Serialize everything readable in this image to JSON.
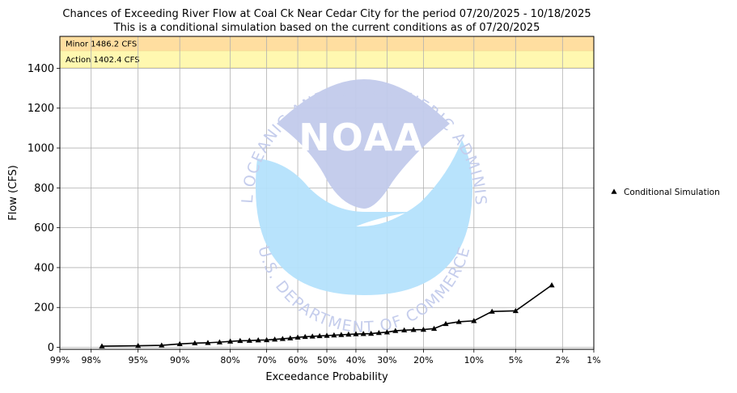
{
  "chart_data": {
    "type": "line",
    "title": "Chances of Exceeding River Flow at Coal Ck Near Cedar City for the period 07/20/2025 - 10/18/2025",
    "subtitle": "This is a conditional simulation based on the current conditions as of 07/20/2025",
    "xlabel": "Exceedance Probability",
    "ylabel": "Flow (CFS)",
    "x_scale": "normal-probability (reversed)",
    "x_range_percent": [
      99,
      1
    ],
    "ylim": [
      -10,
      1560
    ],
    "x_ticks": [
      {
        "p": 99,
        "label": "99%"
      },
      {
        "p": 98,
        "label": "98%"
      },
      {
        "p": 95,
        "label": "95%"
      },
      {
        "p": 90,
        "label": "90%"
      },
      {
        "p": 80,
        "label": "80%"
      },
      {
        "p": 70,
        "label": "70%"
      },
      {
        "p": 60,
        "label": "60%"
      },
      {
        "p": 50,
        "label": "50%"
      },
      {
        "p": 40,
        "label": "40%"
      },
      {
        "p": 30,
        "label": "30%"
      },
      {
        "p": 20,
        "label": "20%"
      },
      {
        "p": 10,
        "label": "10%"
      },
      {
        "p": 5,
        "label": "5%"
      },
      {
        "p": 2,
        "label": "2%"
      },
      {
        "p": 1,
        "label": "1%"
      }
    ],
    "y_ticks": [
      {
        "v": 0,
        "label": "0"
      },
      {
        "v": 200,
        "label": "200"
      },
      {
        "v": 400,
        "label": "400"
      },
      {
        "v": 600,
        "label": "600"
      },
      {
        "v": 800,
        "label": "800"
      },
      {
        "v": 1000,
        "label": "1000"
      },
      {
        "v": 1200,
        "label": "1200"
      },
      {
        "v": 1400,
        "label": "1400"
      }
    ],
    "grid": true,
    "thresholds": [
      {
        "name": "Minor",
        "label": "Minor 1486.2 CFS",
        "value": 1486.2,
        "color": "#FFDEA0"
      },
      {
        "name": "Action",
        "label": "Action 1402.4 CFS",
        "value": 1402.4,
        "color": "#FFF8B0"
      }
    ],
    "series": [
      {
        "name": "Conditional Simulation",
        "color": "#000000",
        "marker": "triangle",
        "points": [
          {
            "p": 97.5,
            "flow": 6
          },
          {
            "p": 95.0,
            "flow": 8
          },
          {
            "p": 92.5,
            "flow": 10
          },
          {
            "p": 90.0,
            "flow": 17
          },
          {
            "p": 87.5,
            "flow": 21
          },
          {
            "p": 85.0,
            "flow": 23
          },
          {
            "p": 82.5,
            "flow": 26
          },
          {
            "p": 80.0,
            "flow": 30
          },
          {
            "p": 77.5,
            "flow": 33
          },
          {
            "p": 75.0,
            "flow": 34
          },
          {
            "p": 72.5,
            "flow": 36
          },
          {
            "p": 70.0,
            "flow": 37
          },
          {
            "p": 67.5,
            "flow": 40
          },
          {
            "p": 65.0,
            "flow": 43
          },
          {
            "p": 62.5,
            "flow": 46
          },
          {
            "p": 60.0,
            "flow": 50
          },
          {
            "p": 57.5,
            "flow": 53
          },
          {
            "p": 55.0,
            "flow": 55
          },
          {
            "p": 52.5,
            "flow": 57
          },
          {
            "p": 50.0,
            "flow": 59
          },
          {
            "p": 47.5,
            "flow": 61
          },
          {
            "p": 45.0,
            "flow": 63
          },
          {
            "p": 42.5,
            "flow": 65
          },
          {
            "p": 40.0,
            "flow": 67
          },
          {
            "p": 37.5,
            "flow": 68
          },
          {
            "p": 35.0,
            "flow": 69
          },
          {
            "p": 32.5,
            "flow": 73
          },
          {
            "p": 30.0,
            "flow": 76
          },
          {
            "p": 27.5,
            "flow": 83
          },
          {
            "p": 25.0,
            "flow": 86
          },
          {
            "p": 22.5,
            "flow": 88
          },
          {
            "p": 20.0,
            "flow": 89
          },
          {
            "p": 17.5,
            "flow": 94
          },
          {
            "p": 15.0,
            "flow": 118
          },
          {
            "p": 12.5,
            "flow": 128
          },
          {
            "p": 10.0,
            "flow": 133
          },
          {
            "p": 7.5,
            "flow": 180
          },
          {
            "p": 5.0,
            "flow": 183
          },
          {
            "p": 2.5,
            "flow": 312
          }
        ]
      }
    ],
    "legend": {
      "placement": "right",
      "entries": [
        "Conditional Simulation"
      ]
    },
    "watermark": {
      "type": "NOAA logo",
      "center_text": "NOAA",
      "ring_text_top": "NATIONAL OCEANIC AND ATMOSPHERIC ADMINISTRATION",
      "ring_text_bottom": "U.S. DEPARTMENT OF COMMERCE"
    }
  }
}
